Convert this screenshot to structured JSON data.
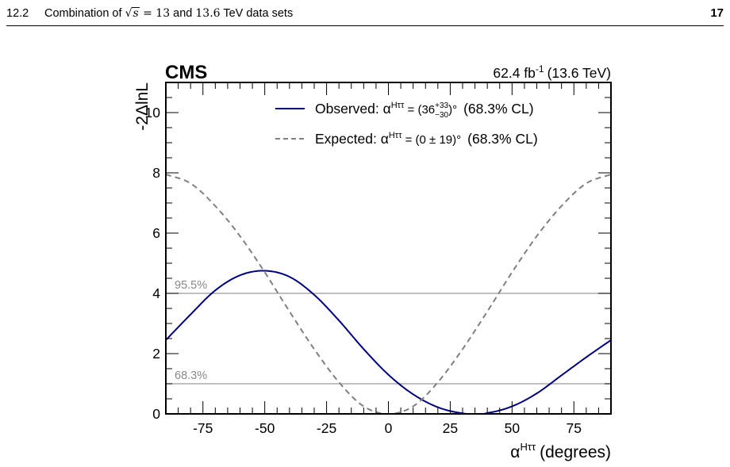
{
  "header": {
    "section_number": "12.2",
    "section_title_pre": "Combination of",
    "sqrt_s": "s",
    "energy_eq": "= 13",
    "and_word": "and",
    "energy_2": "13.6",
    "section_title_post": "TeV data sets",
    "page_number": "17"
  },
  "chart_data": {
    "type": "line",
    "experiment_label": "CMS",
    "luminosity_label": "62.4 fb",
    "luminosity_exponent": "-1",
    "energy_label": "(13.6 TeV)",
    "xlabel": "α",
    "xlabel_sup": "Hττ",
    "xlabel_unit": "(degrees)",
    "ylabel": "-2ΔlnL",
    "xlim": [
      -90,
      90
    ],
    "ylim": [
      0,
      11
    ],
    "xticks": [
      -75,
      -50,
      -25,
      0,
      25,
      50,
      75
    ],
    "yticks": [
      0,
      2,
      4,
      6,
      8,
      10
    ],
    "thresholds": [
      {
        "label": "95.5%",
        "value": 4
      },
      {
        "label": "68.3%",
        "value": 1
      }
    ],
    "series": [
      {
        "name": "Observed",
        "style": "solid",
        "color": "#000080",
        "x": [
          -90,
          -80,
          -70,
          -60,
          -50,
          -40,
          -30,
          -20,
          -10,
          0,
          10,
          20,
          30,
          36,
          40,
          50,
          60,
          70,
          80,
          90
        ],
        "y": [
          2.45,
          3.3,
          4.1,
          4.6,
          4.75,
          4.55,
          3.95,
          3.1,
          2.15,
          1.3,
          0.65,
          0.22,
          0.02,
          0.0,
          0.03,
          0.25,
          0.68,
          1.28,
          1.88,
          2.45
        ],
        "legend_label": "Observed: α",
        "legend_sup": "Hττ",
        "legend_value": " = (36",
        "legend_err_up": "+33",
        "legend_err_down": "−30",
        "legend_unit": ")°",
        "legend_cl": "(68.3% CL)"
      },
      {
        "name": "Expected",
        "style": "dashed",
        "color": "#808080",
        "x": [
          -90,
          -80,
          -70,
          -60,
          -50,
          -40,
          -30,
          -20,
          -10,
          0,
          10,
          20,
          30,
          40,
          50,
          60,
          70,
          80,
          90
        ],
        "y": [
          7.95,
          7.65,
          6.9,
          5.9,
          4.7,
          3.4,
          2.15,
          1.05,
          0.25,
          0.0,
          0.25,
          1.05,
          2.15,
          3.4,
          4.7,
          5.9,
          6.9,
          7.65,
          7.95
        ],
        "legend_label": "Expected: α",
        "legend_sup": "Hττ",
        "legend_value": " = (0 ± 19)°",
        "legend_cl": "(68.3% CL)"
      }
    ]
  }
}
